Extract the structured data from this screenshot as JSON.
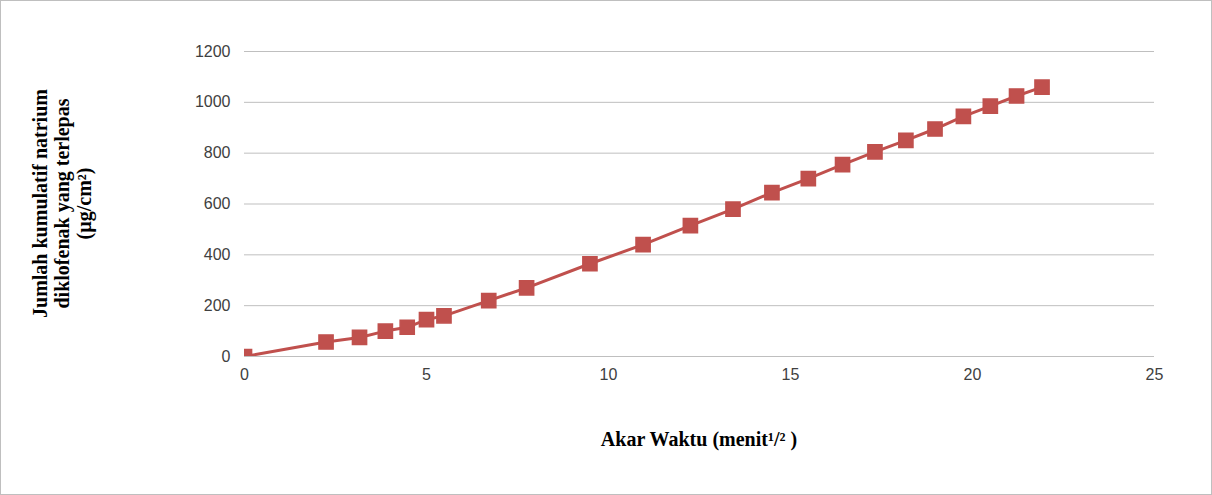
{
  "chart_data": {
    "type": "line",
    "x_label": "Akar Waktu (menit¹/² )",
    "y_label": [
      "Jumlah kumulatif natrium",
      "diklofenak yang terlepas",
      "(µg/cm²)"
    ],
    "x": [
      0,
      2.24,
      3.16,
      3.87,
      4.47,
      5,
      5.48,
      6.71,
      7.75,
      9.49,
      10.95,
      12.25,
      13.42,
      14.49,
      15.49,
      16.43,
      17.32,
      18.17,
      18.97,
      19.75,
      20.49,
      21.21,
      21.91
    ],
    "values": [
      0,
      57,
      75,
      100,
      115,
      145,
      160,
      220,
      270,
      365,
      440,
      515,
      580,
      645,
      700,
      755,
      805,
      850,
      895,
      945,
      985,
      1025,
      1060
    ],
    "color": "#c0504d",
    "marker": "square",
    "line_style": "solid",
    "xlim": [
      0,
      25
    ],
    "xticks": [
      0,
      5,
      10,
      15,
      20,
      25
    ],
    "ylim": [
      0,
      1200
    ],
    "yticks": [
      0,
      200,
      400,
      600,
      800,
      1000,
      1200
    ],
    "grid": true
  }
}
